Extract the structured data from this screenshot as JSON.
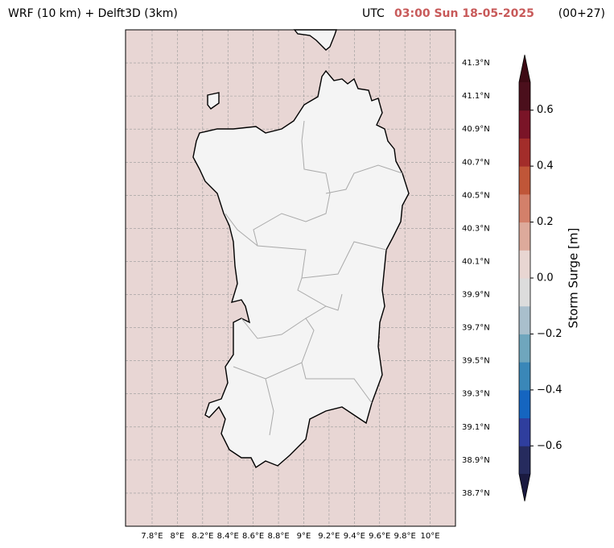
{
  "header": {
    "title": "WRF (10 km) + Delft3D (3km)",
    "zone": "UTC",
    "time": "03:00 Sun 18-05-2025",
    "lead": "(00+27)",
    "time_color": "#c85a5a"
  },
  "map": {
    "sea_color": "#e8d6d4",
    "land_color": "#f4f4f4",
    "grid": true,
    "lonlim": [
      7.59,
      10.2
    ],
    "latlim": [
      38.5,
      41.5
    ],
    "lon_ticks": [
      {
        "value": 7.8,
        "label": "7.8°E"
      },
      {
        "value": 8.0,
        "label": "8°E"
      },
      {
        "value": 8.2,
        "label": "8.2°E"
      },
      {
        "value": 8.4,
        "label": "8.4°E"
      },
      {
        "value": 8.6,
        "label": "8.6°E"
      },
      {
        "value": 8.8,
        "label": "8.8°E"
      },
      {
        "value": 9.0,
        "label": "9°E"
      },
      {
        "value": 9.2,
        "label": "9.2°E"
      },
      {
        "value": 9.4,
        "label": "9.4°E"
      },
      {
        "value": 9.6,
        "label": "9.6°E"
      },
      {
        "value": 9.8,
        "label": "9.8°E"
      },
      {
        "value": 10.0,
        "label": "10°E"
      }
    ],
    "lat_ticks": [
      {
        "value": 41.3,
        "label": "41.3°N"
      },
      {
        "value": 41.1,
        "label": "41.1°N"
      },
      {
        "value": 40.9,
        "label": "40.9°N"
      },
      {
        "value": 40.7,
        "label": "40.7°N"
      },
      {
        "value": 40.5,
        "label": "40.5°N"
      },
      {
        "value": 40.3,
        "label": "40.3°N"
      },
      {
        "value": 40.1,
        "label": "40.1°N"
      },
      {
        "value": 39.9,
        "label": "39.9°N"
      },
      {
        "value": 39.7,
        "label": "39.7°N"
      },
      {
        "value": 39.5,
        "label": "39.5°N"
      },
      {
        "value": 39.3,
        "label": "39.3°N"
      },
      {
        "value": 39.1,
        "label": "39.1°N"
      },
      {
        "value": 38.9,
        "label": "38.9°N"
      },
      {
        "value": 38.7,
        "label": "38.7°N"
      }
    ]
  },
  "colorbar": {
    "label": "Storm Surge [m]",
    "levels": [
      -0.7,
      -0.6,
      -0.5,
      -0.4,
      -0.3,
      -0.2,
      -0.1,
      0.0,
      0.1,
      0.2,
      0.3,
      0.4,
      0.5,
      0.6,
      0.7
    ],
    "colors": [
      "#262b5e",
      "#2f3e9e",
      "#1565c0",
      "#3a87b8",
      "#6fa6bd",
      "#a9bfcc",
      "#dcdcdc",
      "#e8d6d2",
      "#ddaa9b",
      "#d3806a",
      "#c05638",
      "#a32d2a",
      "#7a1427",
      "#4b0f1c"
    ],
    "under_color": "#1a1a40",
    "over_color": "#3d0a14",
    "ticks": [
      {
        "value": -0.6,
        "label": "−0.6"
      },
      {
        "value": -0.4,
        "label": "−0.4"
      },
      {
        "value": -0.2,
        "label": "−0.2"
      },
      {
        "value": 0.0,
        "label": "0.0"
      },
      {
        "value": 0.2,
        "label": "0.2"
      },
      {
        "value": 0.4,
        "label": "0.4"
      },
      {
        "value": 0.6,
        "label": "0.6"
      }
    ]
  }
}
